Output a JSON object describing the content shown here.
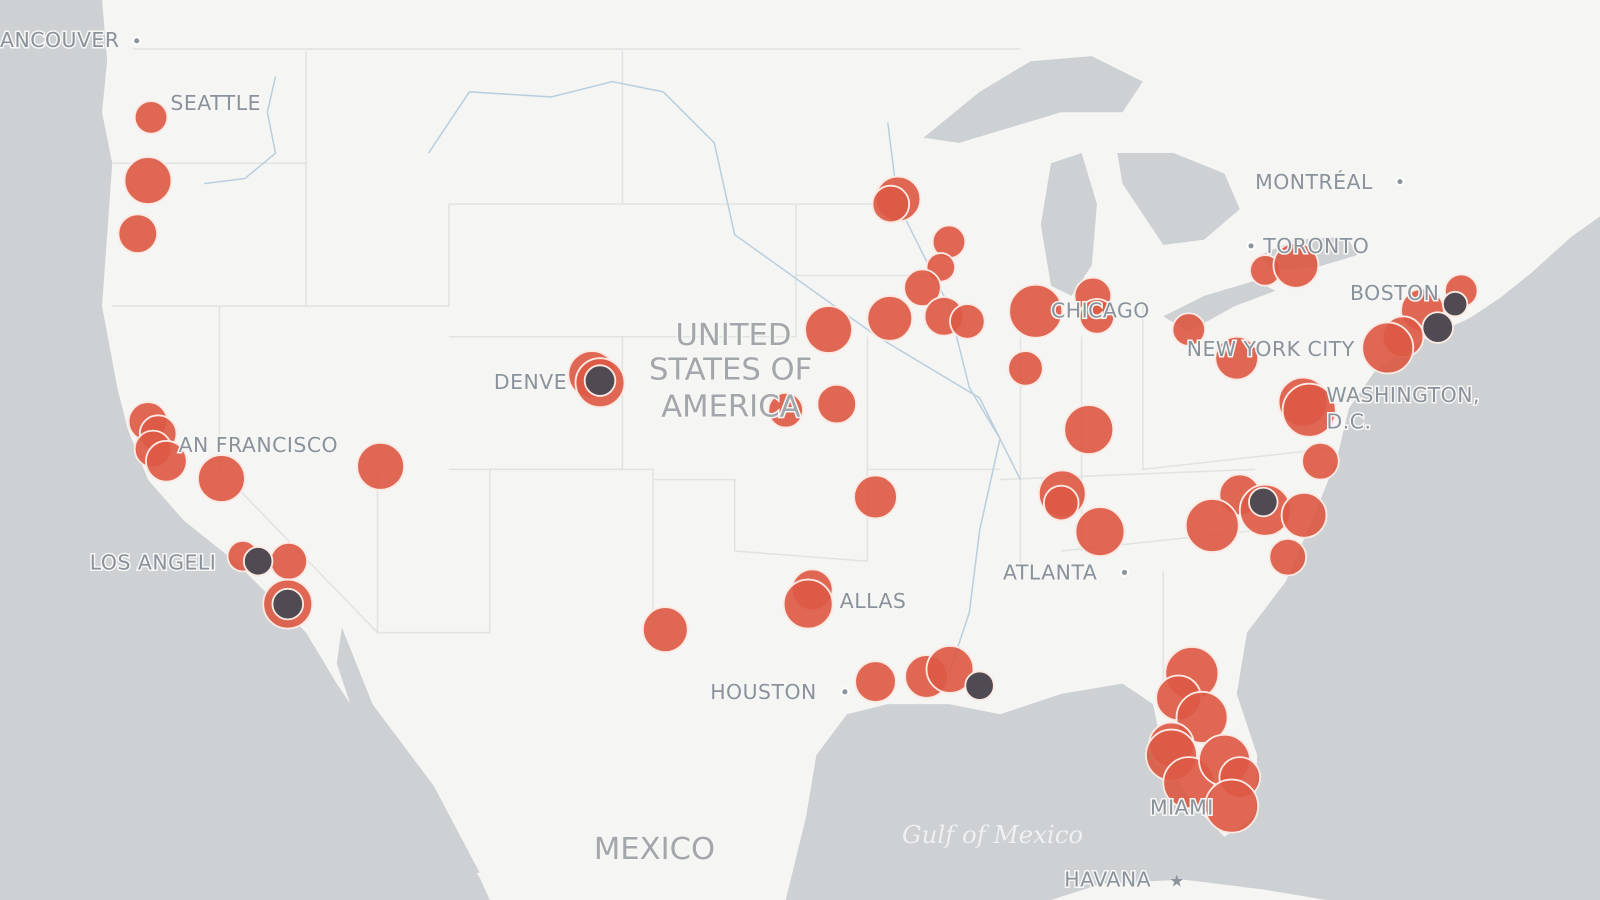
{
  "map": {
    "colors": {
      "land": "#f5f5f3",
      "water": "#cdd1d4",
      "border": "#e2e2e2",
      "river": "#b9cfe0",
      "marker_primary": "#dc5a45",
      "marker_secondary": "#504b52"
    },
    "labels": {
      "vancouver": "ANCOUVER",
      "seattle": "SEATTLE",
      "san_francisco": "AN FRANCISCO",
      "los_angeles": "LOS ANGELI",
      "denver": "DENVE",
      "usa_line1": "UNITED",
      "usa_line2": "STATES OF",
      "usa_line3": "AMERICA",
      "dallas": "ALLAS",
      "houston": "HOUSTON",
      "chicago": "CHICAGO",
      "atlanta": "ATLANTA",
      "montreal": "MONTRÉAL",
      "toronto": "TORONTO",
      "boston": "BOSTON",
      "new_york": "NEW YORK CITY",
      "washington_line1": "WASHINGTON,",
      "washington_line2": "D.C.",
      "miami": "MIAMI",
      "mexico": "MEXICO",
      "gulf": "Gulf of Mexico",
      "havana": "HAVANA"
    }
  }
}
